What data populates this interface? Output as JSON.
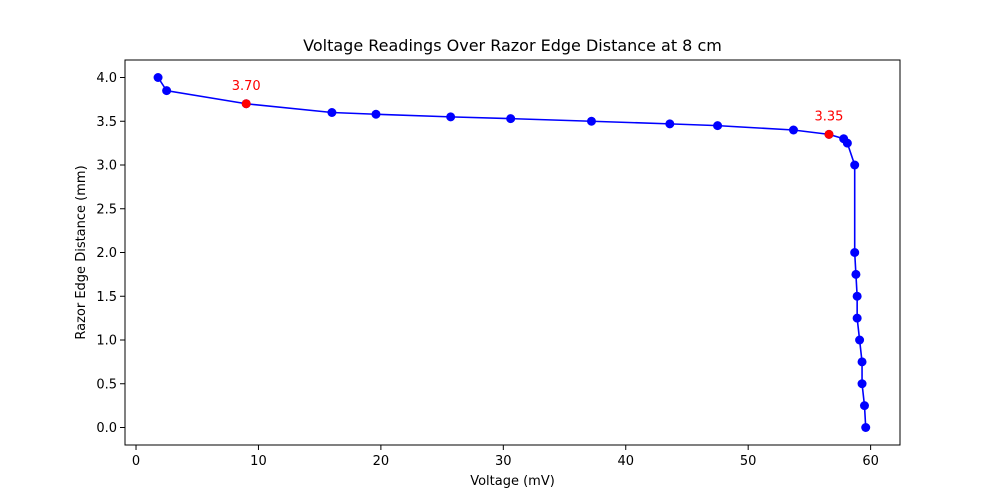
{
  "chart_data": {
    "type": "line",
    "title": "Voltage Readings Over Razor Edge Distance at 8 cm",
    "xlabel": "Voltage (mV)",
    "ylabel": "Razor Edge Distance (mm)",
    "xlim": [
      -0.9,
      62.4
    ],
    "ylim": [
      -0.2,
      4.2
    ],
    "xticks": [
      "0",
      "10",
      "20",
      "30",
      "40",
      "50",
      "60"
    ],
    "yticks": [
      "0.0",
      "0.5",
      "1.0",
      "1.5",
      "2.0",
      "2.5",
      "3.0",
      "3.5",
      "4.0"
    ],
    "grid": false,
    "line_color": "#0000ff",
    "highlight_color": "#ff0000",
    "series": [
      {
        "points": [
          {
            "x": 1.8,
            "y": 4.0
          },
          {
            "x": 2.5,
            "y": 3.85
          },
          {
            "x": 9.0,
            "y": 3.7
          },
          {
            "x": 16.0,
            "y": 3.6
          },
          {
            "x": 19.6,
            "y": 3.58
          },
          {
            "x": 25.7,
            "y": 3.55
          },
          {
            "x": 30.6,
            "y": 3.53
          },
          {
            "x": 37.2,
            "y": 3.5
          },
          {
            "x": 43.6,
            "y": 3.47
          },
          {
            "x": 47.5,
            "y": 3.45
          },
          {
            "x": 53.7,
            "y": 3.4
          },
          {
            "x": 56.6,
            "y": 3.35
          },
          {
            "x": 57.8,
            "y": 3.3
          },
          {
            "x": 58.1,
            "y": 3.25
          },
          {
            "x": 58.7,
            "y": 3.0
          },
          {
            "x": 58.7,
            "y": 2.0
          },
          {
            "x": 58.8,
            "y": 1.75
          },
          {
            "x": 58.9,
            "y": 1.5
          },
          {
            "x": 58.9,
            "y": 1.25
          },
          {
            "x": 59.1,
            "y": 1.0
          },
          {
            "x": 59.3,
            "y": 0.75
          },
          {
            "x": 59.3,
            "y": 0.5
          },
          {
            "x": 59.5,
            "y": 0.25
          },
          {
            "x": 59.6,
            "y": 0.0
          }
        ]
      }
    ],
    "highlights": [
      {
        "x": 9.0,
        "y": 3.7,
        "label": "3.70"
      },
      {
        "x": 56.6,
        "y": 3.35,
        "label": "3.35"
      }
    ]
  }
}
